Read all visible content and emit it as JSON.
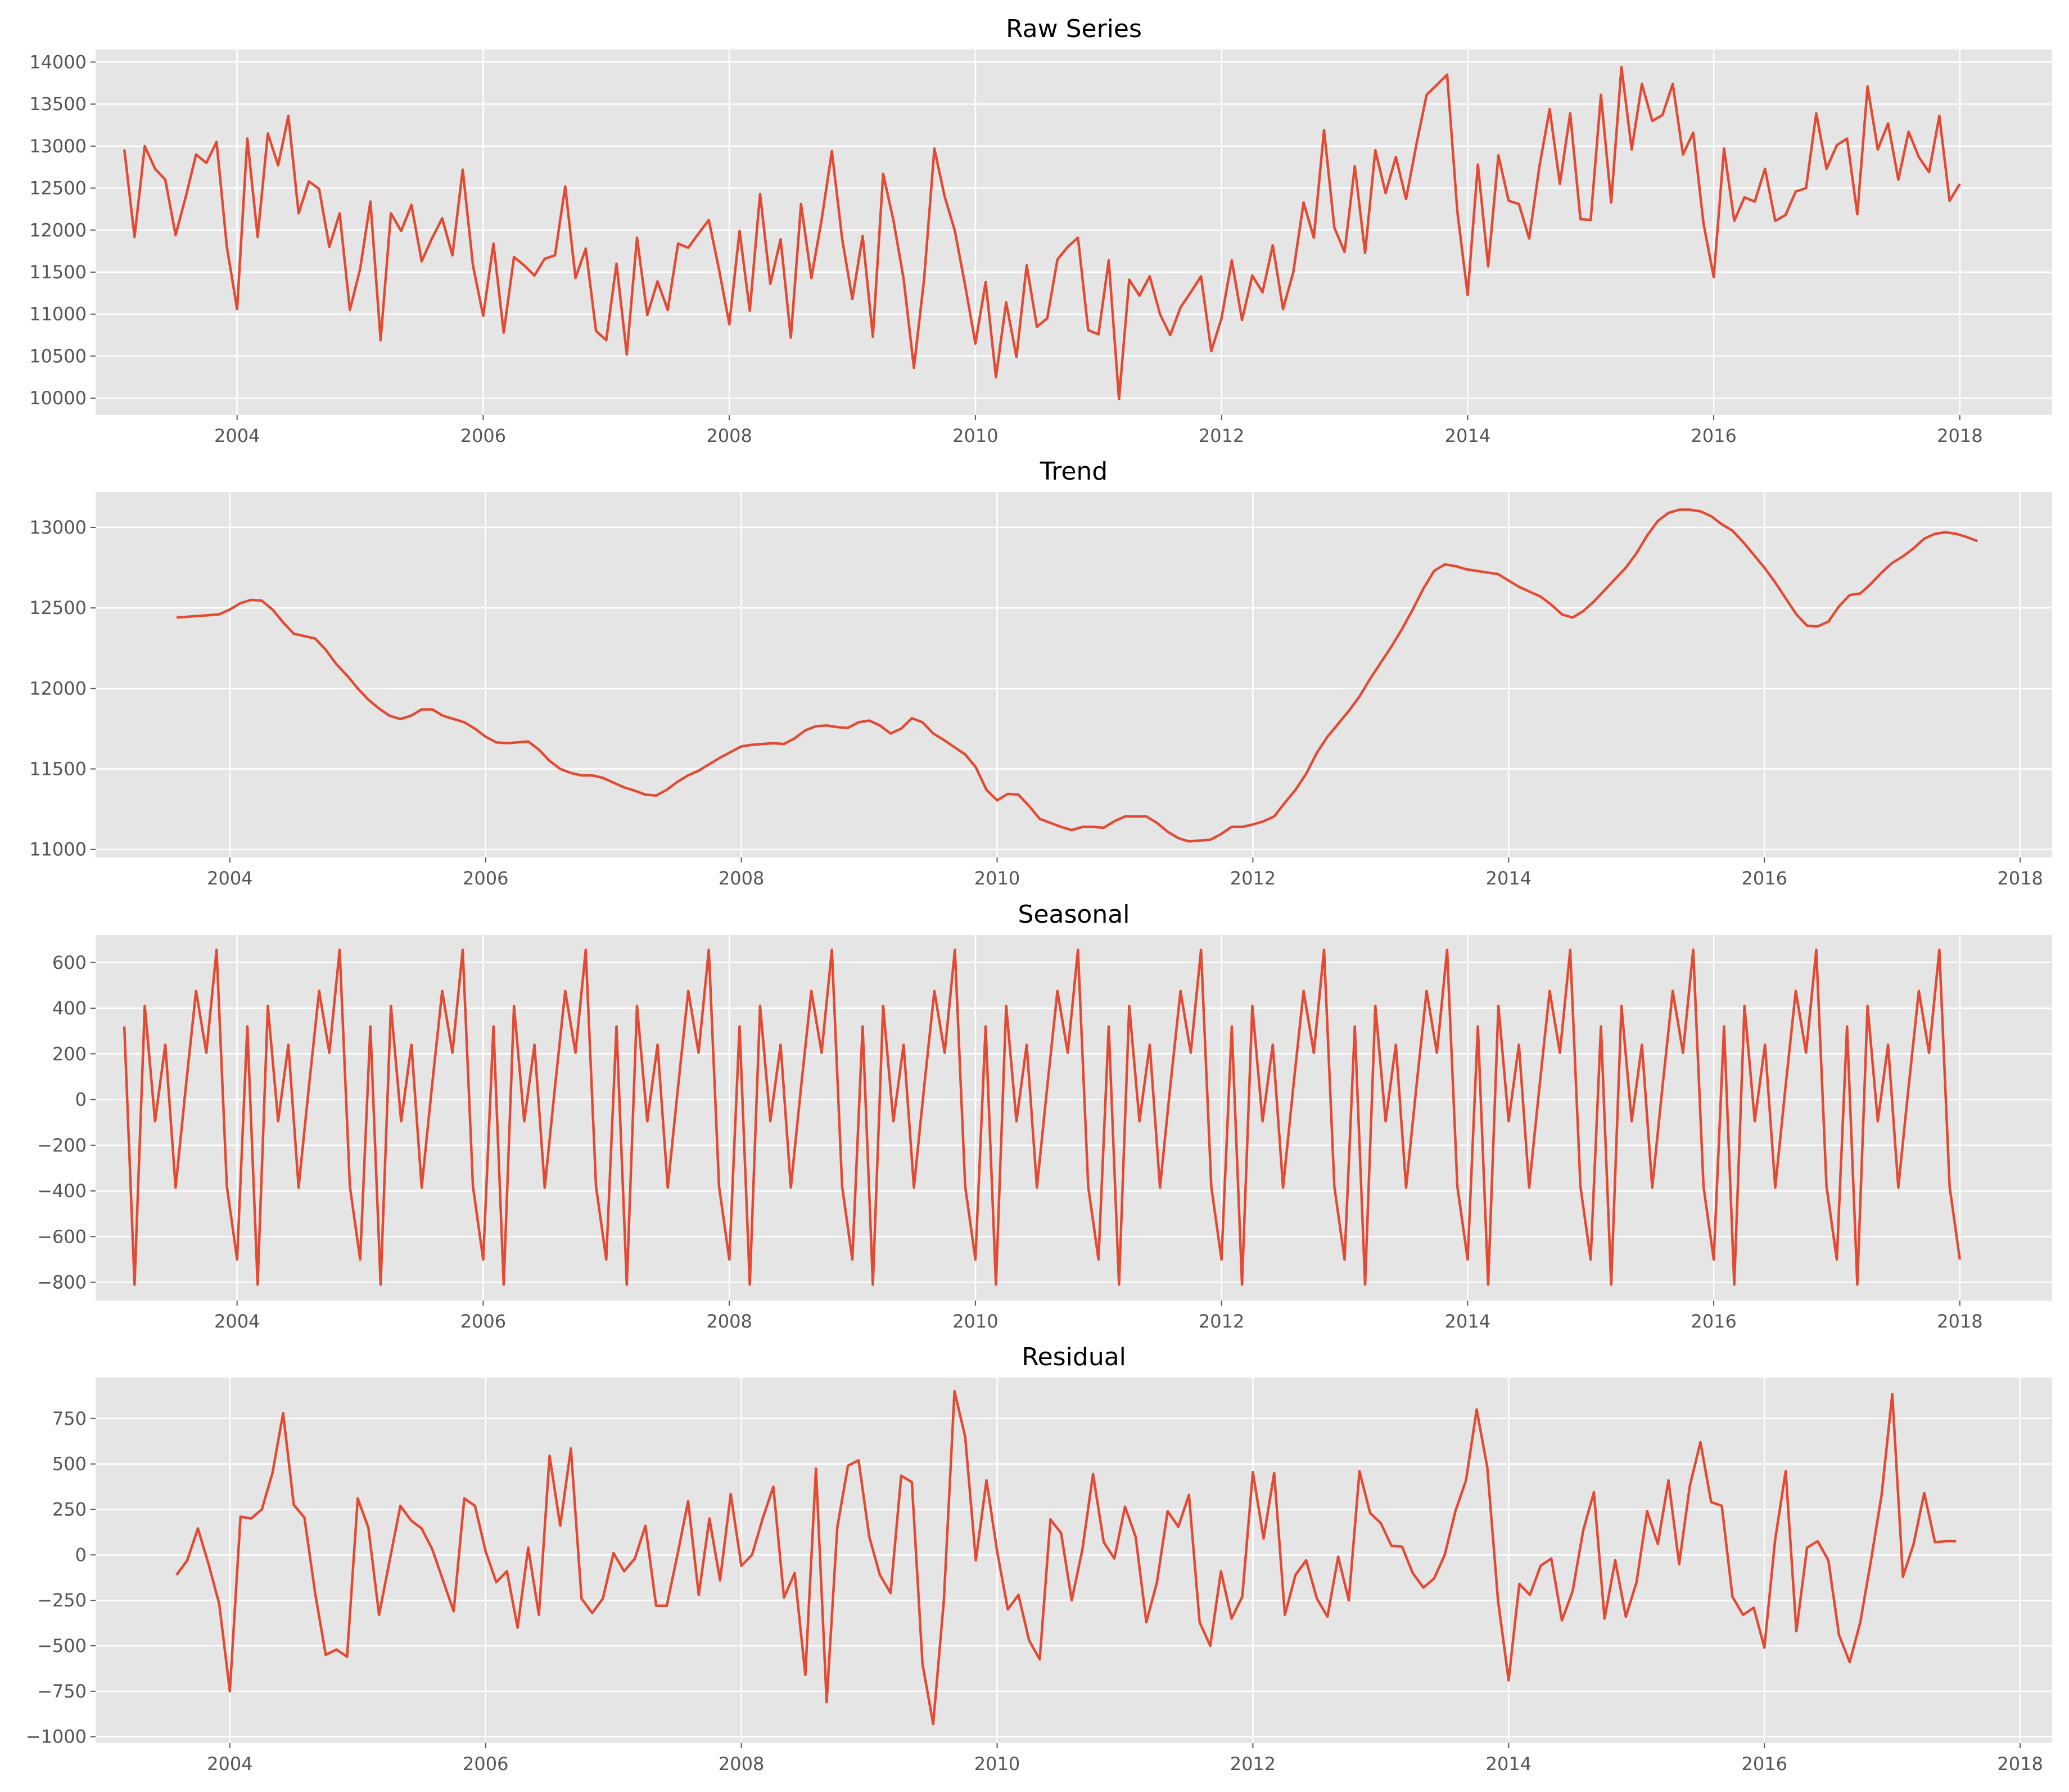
{
  "chart_data": [
    {
      "type": "line",
      "title": "Raw Series",
      "xlim": [
        2002.85,
        2018.75
      ],
      "ylim": [
        9800,
        14150
      ],
      "xticks": [
        2004,
        2006,
        2008,
        2010,
        2012,
        2014,
        2016,
        2018
      ],
      "xtick_labels": [
        "2004",
        "2006",
        "2008",
        "2010",
        "2012",
        "2014",
        "2016",
        "2018"
      ],
      "yticks": [
        10000,
        10500,
        11000,
        11500,
        12000,
        12500,
        13000,
        13500,
        14000
      ],
      "ytick_labels": [
        "10000",
        "10500",
        "11000",
        "11500",
        "12000",
        "12500",
        "13000",
        "13500",
        "14000"
      ],
      "grid": true,
      "color": "#e24a33",
      "series": [
        {
          "x_start": "2003-02",
          "x_step_months": 1,
          "values": [
            12960,
            11920,
            13000,
            12730,
            12600,
            11940,
            12400,
            12900,
            12800,
            13050,
            11800,
            11060,
            13090,
            11920,
            13150,
            12770,
            13360,
            12200,
            12580,
            12490,
            11800,
            12200,
            11050,
            11540,
            12340,
            10690,
            12200,
            11990,
            12300,
            11630,
            11900,
            12140,
            11700,
            12720,
            11580,
            10980,
            11840,
            10780,
            11680,
            11580,
            11460,
            11660,
            11700,
            12520,
            11430,
            11780,
            10800,
            10690,
            11600,
            10520,
            11910,
            10990,
            11390,
            11050,
            11840,
            11790,
            11960,
            12120,
            11530,
            10880,
            11990,
            11040,
            12430,
            11360,
            11890,
            10720,
            12310,
            11430,
            12120,
            12940,
            11900,
            11180,
            11930,
            10730,
            12670,
            12120,
            11420,
            10360,
            11420,
            12970,
            12400,
            11990,
            11340,
            10650,
            11380,
            10250,
            11140,
            10490,
            11580,
            10850,
            10950,
            11650,
            11800,
            11910,
            10810,
            10760,
            11640,
            9990,
            11410,
            11220,
            11450,
            11000,
            10750,
            11080,
            11260,
            11450,
            10560,
            10950,
            11640,
            10930,
            11460,
            11260,
            11820,
            11060,
            11500,
            12330,
            11910,
            13190,
            12030,
            11740,
            12760,
            11730,
            12950,
            12440,
            12870,
            12370,
            13020,
            13610,
            13730,
            13850,
            12220,
            11230,
            12780,
            11570,
            12890,
            12350,
            12310,
            11900,
            12760,
            13440,
            12550,
            13390,
            12130,
            12120,
            13610,
            12330,
            13940,
            12960,
            13740,
            13300,
            13370,
            13740,
            12900,
            13160,
            12080,
            11440,
            12970,
            12110,
            12390,
            12340,
            12730,
            12110,
            12180,
            12460,
            12500,
            13390,
            12730,
            13010,
            13090,
            12190,
            13710,
            12960,
            13270,
            12600,
            13170,
            12870,
            12690,
            13360,
            12350,
            12550
          ]
        }
      ]
    },
    {
      "type": "line",
      "title": "Trend",
      "xlim": [
        2002.95,
        2018.25
      ],
      "ylim": [
        10950,
        13220
      ],
      "xticks": [
        2004,
        2006,
        2008,
        2010,
        2012,
        2014,
        2016,
        2018
      ],
      "xtick_labels": [
        "2004",
        "2006",
        "2008",
        "2010",
        "2012",
        "2014",
        "2016",
        "2018"
      ],
      "yticks": [
        11000,
        11500,
        12000,
        12500,
        13000
      ],
      "ytick_labels": [
        "11000",
        "11500",
        "12000",
        "12500",
        "13000"
      ],
      "grid": true,
      "color": "#e24a33",
      "series": [
        {
          "x_start": "2003-08",
          "x_step_months": 1,
          "values": [
            12440,
            12445,
            12450,
            12455,
            12460,
            12490,
            12530,
            12550,
            12545,
            12490,
            12410,
            12340,
            12325,
            12310,
            12240,
            12150,
            12080,
            12000,
            11930,
            11875,
            11830,
            11810,
            11830,
            11870,
            11870,
            11830,
            11810,
            11790,
            11750,
            11700,
            11665,
            11660,
            11665,
            11670,
            11620,
            11550,
            11500,
            11475,
            11460,
            11460,
            11445,
            11415,
            11385,
            11365,
            11340,
            11335,
            11370,
            11420,
            11460,
            11490,
            11530,
            11570,
            11605,
            11640,
            11650,
            11655,
            11660,
            11655,
            11690,
            11740,
            11765,
            11770,
            11760,
            11755,
            11790,
            11800,
            11770,
            11720,
            11750,
            11815,
            11790,
            11720,
            11680,
            11635,
            11590,
            11510,
            11370,
            11305,
            11345,
            11340,
            11270,
            11190,
            11165,
            11140,
            11120,
            11140,
            11140,
            11135,
            11175,
            11205,
            11205,
            11205,
            11165,
            11110,
            11070,
            11050,
            11055,
            11060,
            11095,
            11140,
            11140,
            11155,
            11175,
            11205,
            11290,
            11370,
            11470,
            11600,
            11700,
            11780,
            11860,
            11950,
            12060,
            12160,
            12260,
            12370,
            12490,
            12620,
            12730,
            12770,
            12760,
            12740,
            12730,
            12720,
            12710,
            12670,
            12630,
            12600,
            12570,
            12520,
            12460,
            12440,
            12480,
            12540,
            12610,
            12680,
            12750,
            12840,
            12950,
            13040,
            13090,
            13110,
            13110,
            13100,
            13070,
            13020,
            12980,
            12910,
            12830,
            12750,
            12660,
            12560,
            12460,
            12390,
            12385,
            12415,
            12510,
            12580,
            12590,
            12650,
            12720,
            12780,
            12820,
            12870,
            12930,
            12960,
            12970,
            12960,
            12940,
            12915
          ]
        }
      ]
    },
    {
      "type": "line",
      "title": "Seasonal",
      "xlim": [
        2002.85,
        2018.75
      ],
      "ylim": [
        -880,
        720
      ],
      "xticks": [
        2004,
        2006,
        2008,
        2010,
        2012,
        2014,
        2016,
        2018
      ],
      "xtick_labels": [
        "2004",
        "2006",
        "2008",
        "2010",
        "2012",
        "2014",
        "2016",
        "2018"
      ],
      "yticks": [
        -800,
        -600,
        -400,
        -200,
        0,
        200,
        400,
        600
      ],
      "ytick_labels": [
        "−800",
        "−600",
        "−400",
        "−200",
        "0",
        "200",
        "400",
        "600"
      ],
      "grid": true,
      "color": "#e24a33",
      "series": [
        {
          "x_start": "2003-02",
          "x_step_months": 1,
          "pattern": [
            320,
            -810,
            410,
            -95,
            240,
            -385,
            55,
            475,
            205,
            655,
            -380,
            -700
          ],
          "repeat": 15
        }
      ]
    },
    {
      "type": "line",
      "title": "Residual",
      "xlim": [
        2002.95,
        2018.25
      ],
      "ylim": [
        -1035,
        975
      ],
      "xticks": [
        2004,
        2006,
        2008,
        2010,
        2012,
        2014,
        2016,
        2018
      ],
      "xtick_labels": [
        "2004",
        "2006",
        "2008",
        "2010",
        "2012",
        "2014",
        "2016",
        "2018"
      ],
      "yticks": [
        -1000,
        -750,
        -500,
        -250,
        0,
        250,
        500,
        750
      ],
      "ytick_labels": [
        "−1000",
        "−750",
        "−500",
        "−250",
        "0",
        "250",
        "500",
        "750"
      ],
      "grid": true,
      "color": "#e24a33",
      "series": [
        {
          "x_start": "2003-08",
          "x_step_months": 1,
          "values": [
            -110,
            -30,
            145,
            -50,
            -270,
            -750,
            210,
            200,
            250,
            450,
            780,
            275,
            205,
            -210,
            -550,
            -520,
            -560,
            310,
            150,
            -330,
            -30,
            270,
            190,
            145,
            30,
            -140,
            -310,
            310,
            270,
            20,
            -150,
            -90,
            -400,
            40,
            -330,
            545,
            160,
            585,
            -240,
            -320,
            -240,
            10,
            -90,
            -20,
            160,
            -280,
            -280,
            0,
            295,
            -220,
            200,
            -140,
            335,
            -60,
            0,
            200,
            375,
            -235,
            -100,
            -660,
            475,
            -810,
            150,
            490,
            520,
            100,
            -110,
            -210,
            435,
            400,
            -600,
            -930,
            -250,
            900,
            650,
            -30,
            410,
            20,
            -300,
            -220,
            -470,
            -575,
            195,
            120,
            -250,
            30,
            445,
            70,
            -20,
            265,
            100,
            -370,
            -150,
            240,
            155,
            330,
            -370,
            -500,
            -90,
            -350,
            -230,
            455,
            90,
            450,
            -330,
            -110,
            -30,
            -240,
            -340,
            -10,
            -250,
            460,
            230,
            175,
            50,
            45,
            -100,
            -180,
            -130,
            0,
            240,
            410,
            800,
            480,
            -250,
            -690,
            -160,
            -220,
            -60,
            -20,
            -360,
            -200,
            135,
            345,
            -350,
            -30,
            -340,
            -150,
            240,
            60,
            410,
            -50,
            380,
            620,
            290,
            270,
            -230,
            -330,
            -290,
            -510,
            80,
            460,
            -420,
            40,
            75,
            -30,
            -440,
            -590,
            -370,
            -30,
            330,
            885,
            -120,
            60,
            340,
            70,
            75,
            75
          ]
        }
      ]
    }
  ]
}
